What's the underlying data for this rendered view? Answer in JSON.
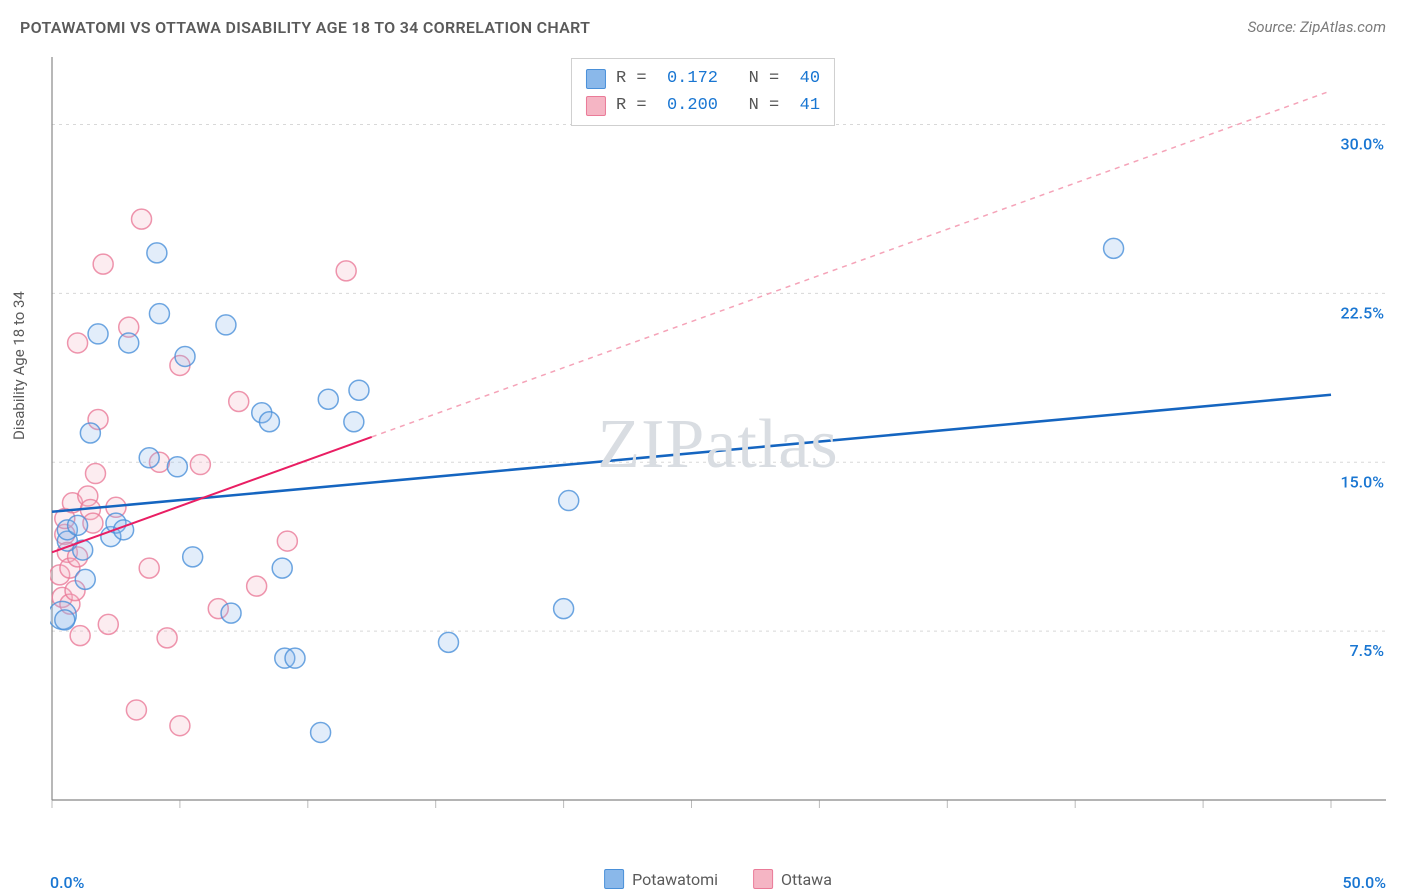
{
  "title": "POTAWATOMI VS OTTAWA DISABILITY AGE 18 TO 34 CORRELATION CHART",
  "source": "Source: ZipAtlas.com",
  "y_axis_label": "Disability Age 18 to 34",
  "watermark": "ZIPatlas",
  "chart": {
    "type": "scatter-correlation",
    "background_color": "#ffffff",
    "grid_color": "#d8d8d8",
    "axis_line_color": "#888888",
    "tick_color": "#bbbbbb",
    "x_range": [
      0,
      50
    ],
    "y_range": [
      0,
      33
    ],
    "y_ticks": [
      7.5,
      15.0,
      22.5,
      30.0
    ],
    "y_tick_labels": [
      "7.5%",
      "15.0%",
      "22.5%",
      "30.0%"
    ],
    "x_min_label": "0.0%",
    "x_max_label": "50.0%",
    "x_minor_tick_step": 5,
    "axis_label_color": "#1976d2",
    "axis_label_fontsize": 16,
    "marker_radius": 10,
    "marker_radius_large": 14,
    "marker_stroke_width": 1.5,
    "marker_fill_opacity": 0.25,
    "marker_stroke_opacity": 0.8
  },
  "series": [
    {
      "name": "Potawatomi",
      "color_fill": "#8ab8ea",
      "color_stroke": "#4a90d9",
      "stats": {
        "R": "0.172",
        "N": "40"
      },
      "trend": {
        "x1": 0,
        "y1": 12.8,
        "x2": 50,
        "y2": 18.0,
        "solid_to_x": 50,
        "solid_color": "#1565c0",
        "solid_width": 2.5
      },
      "points": [
        {
          "x": 0.4,
          "y": 8.2,
          "r": 14
        },
        {
          "x": 0.5,
          "y": 8.0
        },
        {
          "x": 0.6,
          "y": 11.5
        },
        {
          "x": 0.6,
          "y": 12.0
        },
        {
          "x": 1.0,
          "y": 12.2
        },
        {
          "x": 1.2,
          "y": 11.1
        },
        {
          "x": 1.3,
          "y": 9.8
        },
        {
          "x": 1.5,
          "y": 16.3
        },
        {
          "x": 1.8,
          "y": 20.7
        },
        {
          "x": 2.3,
          "y": 11.7
        },
        {
          "x": 2.5,
          "y": 12.3
        },
        {
          "x": 2.8,
          "y": 12.0
        },
        {
          "x": 3.0,
          "y": 20.3
        },
        {
          "x": 3.8,
          "y": 15.2
        },
        {
          "x": 4.1,
          "y": 24.3
        },
        {
          "x": 4.2,
          "y": 21.6
        },
        {
          "x": 4.9,
          "y": 14.8
        },
        {
          "x": 5.2,
          "y": 19.7
        },
        {
          "x": 5.5,
          "y": 10.8
        },
        {
          "x": 6.8,
          "y": 21.1
        },
        {
          "x": 7.0,
          "y": 8.3
        },
        {
          "x": 8.2,
          "y": 17.2
        },
        {
          "x": 8.5,
          "y": 16.8
        },
        {
          "x": 9.0,
          "y": 10.3
        },
        {
          "x": 9.1,
          "y": 6.3
        },
        {
          "x": 9.5,
          "y": 6.3
        },
        {
          "x": 10.8,
          "y": 17.8
        },
        {
          "x": 10.5,
          "y": 3.0
        },
        {
          "x": 11.8,
          "y": 16.8
        },
        {
          "x": 12.0,
          "y": 18.2
        },
        {
          "x": 15.5,
          "y": 7.0
        },
        {
          "x": 20.0,
          "y": 8.5
        },
        {
          "x": 20.2,
          "y": 13.3
        },
        {
          "x": 41.5,
          "y": 24.5
        }
      ]
    },
    {
      "name": "Ottawa",
      "color_fill": "#f5b5c4",
      "color_stroke": "#ea7b98",
      "stats": {
        "R": "0.200",
        "N": "41"
      },
      "trend": {
        "x1": 0,
        "y1": 11.0,
        "x2": 50,
        "y2": 31.5,
        "solid_to_x": 12.5,
        "solid_color": "#e91e63",
        "solid_width": 2,
        "dash_color": "#f5a3b8"
      },
      "points": [
        {
          "x": 0.3,
          "y": 10.0
        },
        {
          "x": 0.4,
          "y": 9.0
        },
        {
          "x": 0.5,
          "y": 11.8
        },
        {
          "x": 0.5,
          "y": 12.5
        },
        {
          "x": 0.6,
          "y": 11.0
        },
        {
          "x": 0.7,
          "y": 10.3
        },
        {
          "x": 0.7,
          "y": 8.7
        },
        {
          "x": 0.8,
          "y": 13.2
        },
        {
          "x": 0.9,
          "y": 9.3
        },
        {
          "x": 1.0,
          "y": 10.8
        },
        {
          "x": 1.0,
          "y": 20.3
        },
        {
          "x": 1.1,
          "y": 7.3
        },
        {
          "x": 1.4,
          "y": 13.5
        },
        {
          "x": 1.5,
          "y": 12.9
        },
        {
          "x": 1.6,
          "y": 12.3
        },
        {
          "x": 1.7,
          "y": 14.5
        },
        {
          "x": 1.8,
          "y": 16.9
        },
        {
          "x": 2.0,
          "y": 23.8
        },
        {
          "x": 2.2,
          "y": 7.8
        },
        {
          "x": 2.5,
          "y": 13.0
        },
        {
          "x": 3.0,
          "y": 21.0
        },
        {
          "x": 3.3,
          "y": 4.0
        },
        {
          "x": 3.5,
          "y": 25.8
        },
        {
          "x": 3.8,
          "y": 10.3
        },
        {
          "x": 4.2,
          "y": 15.0
        },
        {
          "x": 4.5,
          "y": 7.2
        },
        {
          "x": 5.0,
          "y": 3.3
        },
        {
          "x": 5.0,
          "y": 19.3
        },
        {
          "x": 5.8,
          "y": 14.9
        },
        {
          "x": 6.5,
          "y": 8.5
        },
        {
          "x": 7.3,
          "y": 17.7
        },
        {
          "x": 8.0,
          "y": 9.5
        },
        {
          "x": 9.2,
          "y": 11.5
        },
        {
          "x": 11.5,
          "y": 23.5
        }
      ]
    }
  ],
  "legend_box": {
    "rows": [
      {
        "swatch": 0,
        "r_label": "R =",
        "r_val": "0.172",
        "n_label": "N =",
        "n_val": "40"
      },
      {
        "swatch": 1,
        "r_label": "R =",
        "r_val": "0.200",
        "n_label": "N =",
        "n_val": "41"
      }
    ]
  },
  "bottom_legend": [
    {
      "swatch": 0,
      "label": "Potawatomi"
    },
    {
      "swatch": 1,
      "label": "Ottawa"
    }
  ]
}
